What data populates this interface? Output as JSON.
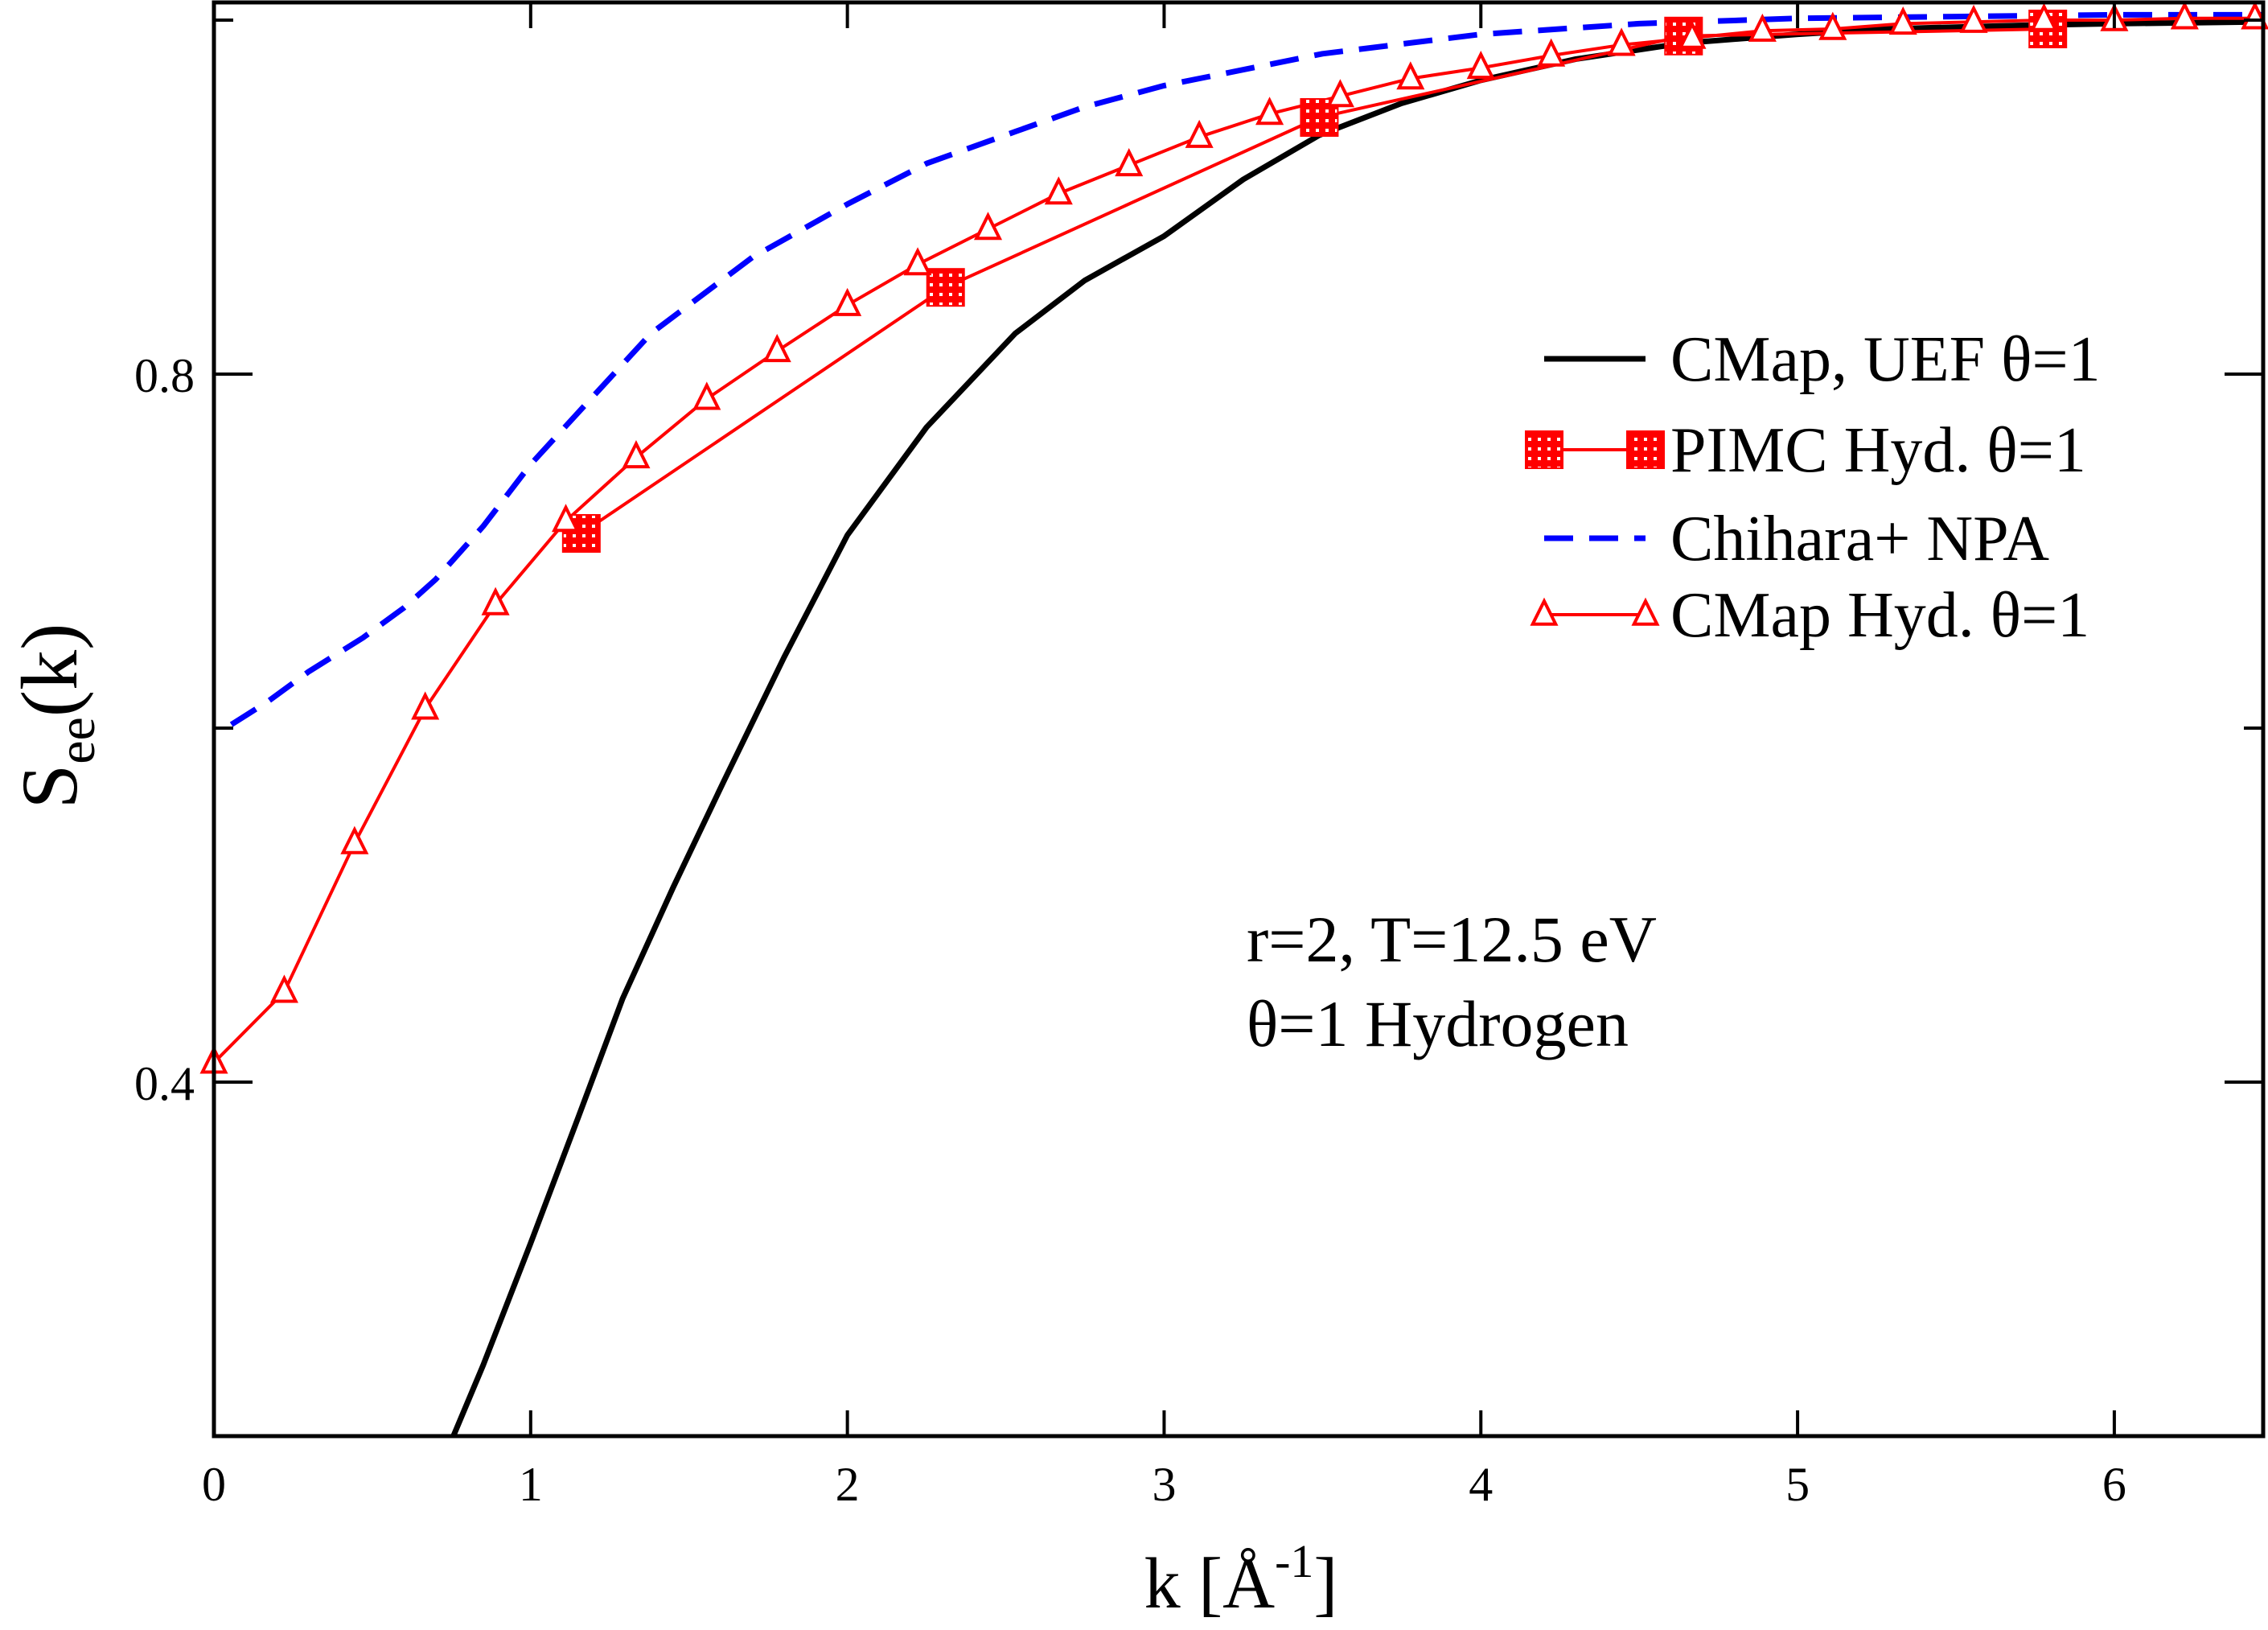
{
  "chart_data": {
    "type": "line",
    "title": "",
    "xlabel": "k [Å",
    "xlabel_sup": "-1",
    "xlabel_close": "]",
    "ylabel": "S",
    "ylabel_sub": "ee",
    "ylabel_tail": "(k)",
    "xlim": [
      0,
      6.47
    ],
    "ylim": [
      0.2,
      1.01
    ],
    "x_ticks": [
      0,
      1,
      2,
      3,
      4,
      5,
      6
    ],
    "x_tick_labels": [
      "0",
      "1",
      "2",
      "3",
      "4",
      "5",
      "6"
    ],
    "y_major_ticks": [
      0.4,
      0.8
    ],
    "y_tick_labels": [
      "0.4",
      "0.8"
    ],
    "y_minor_ticks": [
      0.6,
      1.0
    ],
    "grid": false,
    "legend_placement": "right-upper",
    "annotations": [
      "r=2, T=12.5 eV",
      "θ=1 Hydrogen"
    ],
    "colors": {
      "black": "#000000",
      "red": "#ff0000",
      "blue": "#0000ff"
    },
    "series": [
      {
        "name": "CMap, UEF θ=1",
        "color": "#000000",
        "style": "solid",
        "marker": "none",
        "x": [
          0.756,
          0.85,
          1.0,
          1.15,
          1.29,
          1.45,
          1.61,
          1.8,
          2.0,
          2.25,
          2.53,
          2.75,
          3.0,
          3.25,
          3.49,
          3.75,
          4.0,
          4.3,
          4.64,
          5.0,
          5.28,
          5.7,
          6.0,
          6.47
        ],
        "y": [
          0.2,
          0.24,
          0.309,
          0.38,
          0.447,
          0.51,
          0.57,
          0.64,
          0.709,
          0.77,
          0.823,
          0.853,
          0.878,
          0.91,
          0.935,
          0.953,
          0.966,
          0.978,
          0.987,
          0.992,
          0.995,
          0.997,
          0.998,
          0.999
        ]
      },
      {
        "name": "PIMC Hyd. θ=1",
        "color": "#ff0000",
        "style": "solid",
        "marker": "square-dotted",
        "x": [
          1.16,
          2.31,
          3.49,
          4.64,
          5.79
        ],
        "y": [
          0.71,
          0.849,
          0.945,
          0.991,
          0.995
        ]
      },
      {
        "name": "Chihara+ NPA",
        "color": "#0000ff",
        "style": "dashed",
        "marker": "none",
        "x": [
          0.055,
          0.17,
          0.3,
          0.47,
          0.6,
          0.7,
          0.85,
          1.0,
          1.2,
          1.38,
          1.7,
          2.0,
          2.25,
          2.53,
          2.75,
          3.0,
          3.5,
          4.0,
          4.5,
          5.0,
          5.5,
          6.0,
          6.47
        ],
        "y": [
          0.602,
          0.615,
          0.632,
          0.651,
          0.668,
          0.684,
          0.714,
          0.749,
          0.788,
          0.823,
          0.866,
          0.896,
          0.919,
          0.937,
          0.951,
          0.963,
          0.981,
          0.992,
          0.998,
          1.001,
          1.002,
          1.003,
          1.003
        ]
      },
      {
        "name": "CMap Hyd. θ=1",
        "color": "#ff0000",
        "style": "solid",
        "marker": "triangle-open",
        "x": [
          0,
          0.222,
          0.444,
          0.667,
          0.889,
          1.111,
          1.333,
          1.556,
          1.778,
          2.0,
          2.222,
          2.444,
          2.667,
          2.889,
          3.111,
          3.333,
          3.556,
          3.778,
          4.0,
          4.222,
          4.444,
          4.667,
          4.889,
          5.111,
          5.333,
          5.556,
          5.778,
          6.0,
          6.222,
          6.444
        ],
        "y": [
          0.411,
          0.451,
          0.535,
          0.611,
          0.67,
          0.717,
          0.753,
          0.786,
          0.813,
          0.839,
          0.862,
          0.882,
          0.902,
          0.918,
          0.934,
          0.947,
          0.957,
          0.967,
          0.973,
          0.98,
          0.986,
          0.99,
          0.994,
          0.995,
          0.998,
          0.999,
          1.0,
          1.0,
          1.001,
          1.001
        ]
      }
    ]
  }
}
